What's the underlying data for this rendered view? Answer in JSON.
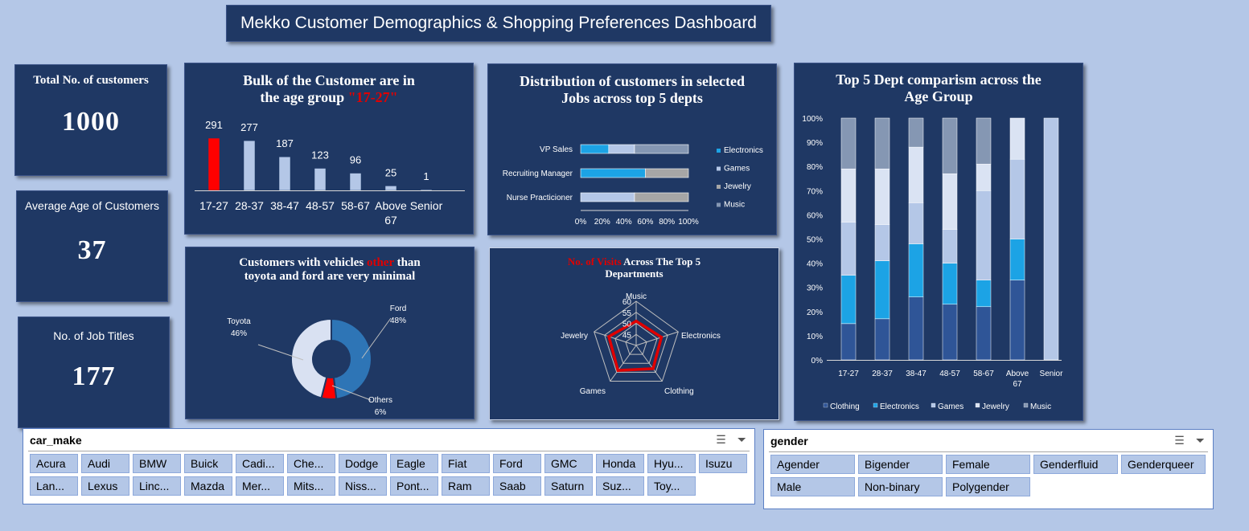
{
  "title": "Mekko Customer Demographics & Shopping Preferences Dashboard",
  "kpis": {
    "total_label": "Total No. of customers",
    "total_value": "1000",
    "avg_age_label": "Average Age of Customers",
    "avg_age_value": "37",
    "job_titles_label": "No. of Job Titles",
    "job_titles_value": "177"
  },
  "age_chart": {
    "title_line1": "Bulk of the Customer are in",
    "title_line2_pre": "the age group ",
    "title_highlight": "\"17-27\""
  },
  "jobs_chart": {
    "title": "Distribution of customers in selected Jobs across top 5 depts"
  },
  "vehicle_chart": {
    "title_pre": "Customers with vehicles ",
    "title_highlight": "other",
    "title_post": " than toyota and ford are very minimal"
  },
  "visits_chart": {
    "title_highlight": "No. of Visits",
    "title_post": " Across The Top 5 Departments"
  },
  "dept_age_chart": {
    "title": "Top 5 Dept comparism across the Age Group"
  },
  "chart_data": [
    {
      "type": "bar",
      "categories": [
        "17-27",
        "28-37",
        "38-47",
        "48-57",
        "58-67",
        "Above 67",
        "Senior"
      ],
      "values": [
        291,
        277,
        187,
        123,
        96,
        25,
        1
      ],
      "highlight_color": "#ff0000",
      "bar_color": "#b4c7e7"
    },
    {
      "type": "bar",
      "orientation": "horizontal",
      "stacked": "percent",
      "categories": [
        "VP Sales",
        "Recruiting Manager",
        "Nurse Practicioner"
      ],
      "series": [
        {
          "name": "Electronics",
          "color": "#1ca3e5",
          "values": [
            26,
            60,
            0
          ]
        },
        {
          "name": "Games",
          "color": "#b4c7e7",
          "values": [
            24,
            0,
            50
          ]
        },
        {
          "name": "Jewelry",
          "color": "#a6a6a6",
          "values": [
            0,
            40,
            50
          ]
        },
        {
          "name": "Music",
          "color": "#8597b3",
          "values": [
            50,
            0,
            0
          ]
        }
      ],
      "xticks": [
        "0%",
        "20%",
        "40%",
        "60%",
        "80%",
        "100%"
      ]
    },
    {
      "type": "pie",
      "donut": true,
      "slices": [
        {
          "name": "Ford",
          "value": 48,
          "label": "48%",
          "color": "#2e75b6"
        },
        {
          "name": "Others",
          "value": 6,
          "label": "6%",
          "color": "#ff0000"
        },
        {
          "name": "Toyota",
          "value": 46,
          "label": "46%",
          "color": "#d9e1f2"
        }
      ]
    },
    {
      "type": "radar",
      "axes": [
        "Music",
        "Electronics",
        "Clothing",
        "Games",
        "Jewelry"
      ],
      "values": [
        51,
        52,
        53,
        54,
        53
      ],
      "range": [
        40,
        60
      ],
      "ticks": [
        "45",
        "50",
        "55",
        "60"
      ],
      "line_color": "#e00000"
    },
    {
      "type": "bar",
      "stacked": "percent",
      "categories": [
        "17-27",
        "28-37",
        "38-47",
        "48-57",
        "58-67",
        "Above 67",
        "Senior"
      ],
      "series": [
        {
          "name": "Clothing",
          "color": "#2f5597",
          "values": [
            15,
            17,
            26,
            23,
            22,
            33,
            0
          ]
        },
        {
          "name": "Electronics",
          "color": "#1ca3e5",
          "values": [
            20,
            24,
            22,
            17,
            11,
            17,
            0
          ]
        },
        {
          "name": "Games",
          "color": "#b4c7e7",
          "values": [
            22,
            15,
            17,
            14,
            37,
            33,
            100
          ]
        },
        {
          "name": "Jewelry",
          "color": "#dae3f3",
          "values": [
            22,
            23,
            23,
            23,
            11,
            17,
            0
          ]
        },
        {
          "name": "Music",
          "color": "#8597b3",
          "values": [
            21,
            21,
            12,
            23,
            19,
            0,
            0
          ]
        }
      ],
      "yticks": [
        "0%",
        "10%",
        "20%",
        "30%",
        "40%",
        "50%",
        "60%",
        "70%",
        "80%",
        "90%",
        "100%"
      ]
    }
  ],
  "slicers": {
    "car_make": {
      "title": "car_make",
      "items": [
        "Acura",
        "Audi",
        "BMW",
        "Buick",
        "Cadi...",
        "Che...",
        "Dodge",
        "Eagle",
        "Fiat",
        "Ford",
        "GMC",
        "Honda",
        "Hyu...",
        "Isuzu",
        "Lan...",
        "Lexus",
        "Linc...",
        "Mazda",
        "Mer...",
        "Mits...",
        "Niss...",
        "Pont...",
        "Ram",
        "Saab",
        "Saturn",
        "Suz...",
        "Toy..."
      ]
    },
    "gender": {
      "title": "gender",
      "items": [
        "Agender",
        "Bigender",
        "Female",
        "Genderfluid",
        "Genderqueer",
        "Male",
        "Non-binary",
        "Polygender"
      ]
    }
  },
  "icons": {
    "multiselect": "multi-select-icon",
    "clear_filter": "clear-filter-icon"
  }
}
